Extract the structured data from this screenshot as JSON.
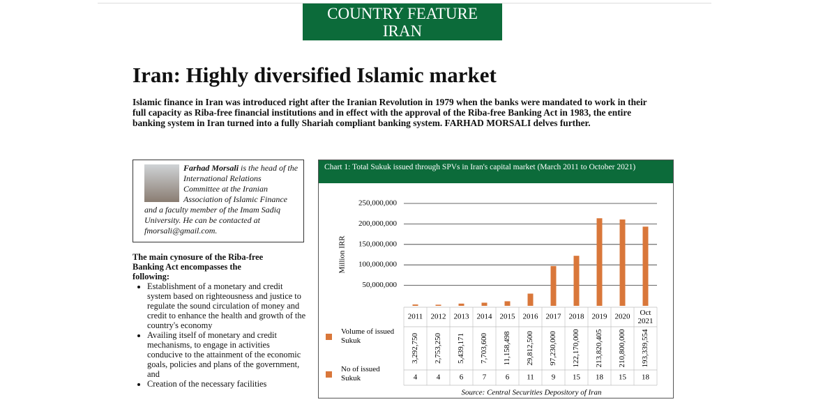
{
  "header": {
    "line1": "COUNTRY FEATURE",
    "line2": "IRAN"
  },
  "title": "Iran: Highly diversified Islamic market",
  "intro": "Islamic finance in Iran was introduced right after the Iranian Revolution in 1979 when the banks were mandated to work in their full capacity as Riba-free financial institutions and in effect with the approval of the Riba-free Banking Act in 1983, the entire banking system in Iran turned into a fully Shariah compliant banking system. FARHAD MORSALI delves further.",
  "author": {
    "name": "Farhad Morsali",
    "bio": "is the head of the International Relations Committee at the Iranian Association of Islamic Finance and a faculty member of the Imam Sadiq University. He can be contacted at fmorsali@gmail.com."
  },
  "list": {
    "heading": "The main cynosure of the Riba-free Banking Act encompasses the following:",
    "items": [
      "Establishment of a monetary and credit system based on righteousness and justice to regulate the sound circulation of money and credit to enhance the health and growth of the country's economy",
      "Availing itself of monetary and credit mechanisms, to engage in activities conducive to the attainment of the economic goals, policies and plans of the government, and",
      "Creation of the necessary facilities"
    ]
  },
  "chart_data": {
    "type": "bar",
    "title": "Chart 1: Total Sukuk issued through SPVs in Iran's capital market (March 2011 to October 2021)",
    "y_label": "Million IRR",
    "categories": [
      "2011",
      "2012",
      "2013",
      "2014",
      "2015",
      "2016",
      "2017",
      "2018",
      "2019",
      "2020",
      "Oct 2021"
    ],
    "series": [
      {
        "name": "Volume of issued Sukuk",
        "color": "#d9773a",
        "values": [
          3292750,
          2753250,
          5439171,
          7703600,
          11158498,
          29812500,
          97230000,
          122170000,
          213820405,
          210800000,
          193339554
        ],
        "value_labels": [
          "3,292,750",
          "2,753,250",
          "5,439,171",
          "7,703,600",
          "11,158,498",
          "29,812,500",
          "97,230,000",
          "122,170,000",
          "213,820,405",
          "210,800,000",
          "193,339,554"
        ]
      },
      {
        "name": "No of issued Sukuk",
        "color": "#d9773a",
        "values": [
          4,
          4,
          6,
          7,
          6,
          11,
          9,
          15,
          18,
          15,
          18
        ]
      }
    ],
    "ylim": [
      0,
      250000000
    ],
    "yticks": [
      {
        "value": 50000000,
        "label": "50,000,000"
      },
      {
        "value": 100000000,
        "label": "100,000,000"
      },
      {
        "value": 150000000,
        "label": "150,000,000"
      },
      {
        "value": 200000000,
        "label": "200,000,000"
      },
      {
        "value": 250000000,
        "label": "250,000,000"
      }
    ],
    "grid": true,
    "source": "Source: Central Securities Depository of Iran"
  }
}
